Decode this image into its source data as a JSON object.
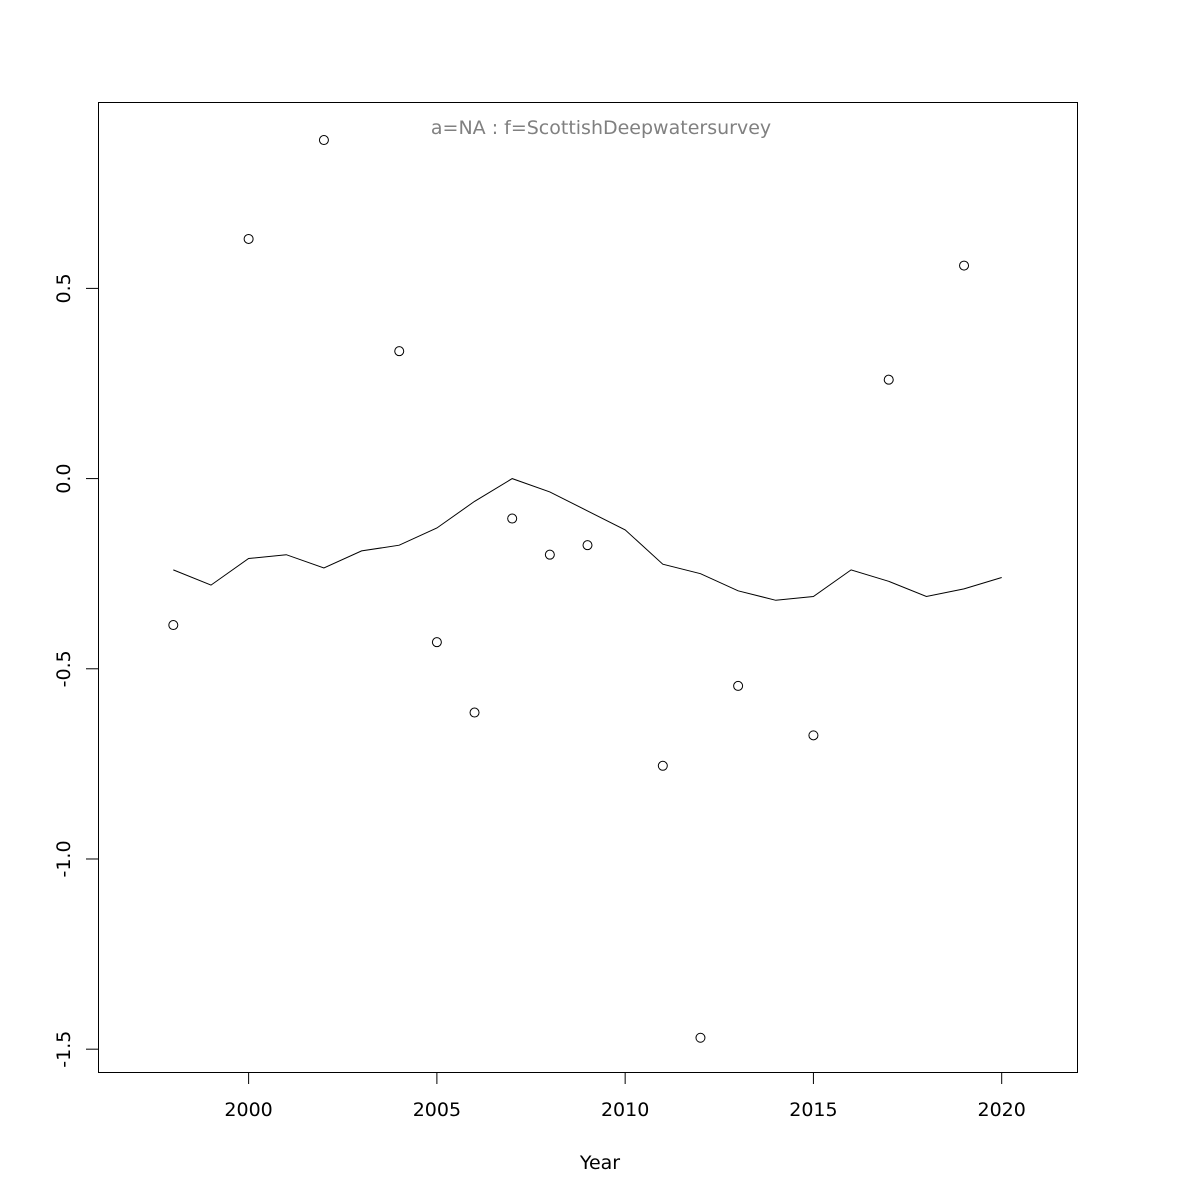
{
  "chart_data": {
    "type": "scatter",
    "title": "a=NA  :  f=ScottishDeepwatersurvey",
    "xlabel": "Year",
    "ylabel": "",
    "xlim": [
      1996,
      2022
    ],
    "ylim": [
      -1.56,
      0.99
    ],
    "x_ticks": [
      2000,
      2005,
      2010,
      2015,
      2020
    ],
    "x_tick_labels": [
      "2000",
      "2005",
      "2010",
      "2015",
      "2020"
    ],
    "y_ticks": [
      -1.5,
      -1.0,
      -0.5,
      0.0,
      0.5
    ],
    "y_tick_labels": [
      "-1.5",
      "-1.0",
      "-0.5",
      "0.0",
      "0.5"
    ],
    "grid": false,
    "series": [
      {
        "type": "scatter",
        "marker": "open-circle",
        "x": [
          1998,
          2000,
          2002,
          2004,
          2005,
          2006,
          2007,
          2008,
          2009,
          2011,
          2012,
          2013,
          2015,
          2017,
          2019
        ],
        "y": [
          -0.385,
          0.63,
          0.89,
          0.335,
          -0.43,
          -0.615,
          -0.105,
          -0.2,
          -0.175,
          -0.755,
          -1.47,
          -0.545,
          -0.675,
          0.26,
          0.56
        ]
      },
      {
        "type": "line",
        "x": [
          1998,
          1999,
          2000,
          2001,
          2002,
          2003,
          2004,
          2005,
          2006,
          2007,
          2008,
          2009,
          2010,
          2011,
          2012,
          2013,
          2014,
          2015,
          2016,
          2017,
          2018,
          2019,
          2020
        ],
        "y": [
          -0.24,
          -0.28,
          -0.21,
          -0.2,
          -0.235,
          -0.19,
          -0.175,
          -0.13,
          -0.06,
          0.0,
          -0.035,
          -0.085,
          -0.135,
          -0.225,
          -0.25,
          -0.295,
          -0.32,
          -0.31,
          -0.24,
          -0.27,
          -0.31,
          -0.29,
          -0.26
        ]
      }
    ]
  }
}
